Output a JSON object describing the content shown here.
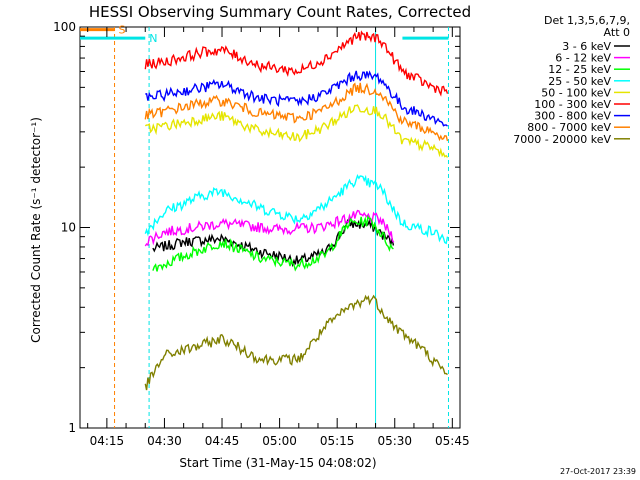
{
  "chart_data": {
    "type": "line",
    "title": "HESSI Observing Summary Count Rates, Corrected",
    "xlabel": "Start Time (31-May-15 04:08:02)",
    "ylabel": "Corrected Count Rate (s⁻¹ detector⁻¹)",
    "y_scale": "log",
    "ylim": [
      1,
      100
    ],
    "xlim_minutes": [
      "04:08",
      "05:47"
    ],
    "x_ticks": [
      "04:15",
      "04:30",
      "04:45",
      "05:00",
      "05:15",
      "05:30",
      "05:45"
    ],
    "y_ticks": [
      "1",
      "10",
      "100"
    ],
    "grid": false,
    "legend_placement": "right",
    "legend_header": [
      "Det 1,3,5,6,7,9,",
      "Att 0"
    ],
    "flags": [
      {
        "label": "S",
        "color": "#ff8000",
        "from": "04:08",
        "to": "04:17",
        "level": 97
      },
      {
        "label": "N",
        "color": "#00e5e5",
        "from": "04:08",
        "to": "04:25",
        "level": 88
      },
      {
        "label": "",
        "color": "#00e5e5",
        "from": "05:32",
        "to": "05:44",
        "level": 88
      }
    ],
    "markers": [
      {
        "time": "04:17",
        "color": "#ff8000",
        "style": "dashed"
      },
      {
        "time": "04:26",
        "color": "#00e5e5",
        "style": "dashed"
      },
      {
        "time": "05:25",
        "color": "#00e5e5",
        "style": "solid"
      },
      {
        "time": "05:44",
        "color": "#00e5e5",
        "style": "dashed"
      }
    ],
    "series": [
      {
        "name": "3 - 6 keV",
        "color": "#000000",
        "points": [
          [
            "04:27",
            7.8
          ],
          [
            "04:35",
            8.5
          ],
          [
            "04:45",
            8.8
          ],
          [
            "04:55",
            7.6
          ],
          [
            "05:05",
            6.8
          ],
          [
            "05:12",
            7.5
          ],
          [
            "05:18",
            10.5
          ],
          [
            "05:24",
            10.2
          ],
          [
            "05:30",
            8.2
          ]
        ]
      },
      {
        "name": "6 - 12 keV",
        "color": "#ff00ff",
        "points": [
          [
            "04:25",
            8.5
          ],
          [
            "04:30",
            9.5
          ],
          [
            "04:45",
            10.5
          ],
          [
            "05:00",
            9.8
          ],
          [
            "05:10",
            10
          ],
          [
            "05:20",
            11.5
          ],
          [
            "05:26",
            11
          ],
          [
            "05:30",
            8.8
          ]
        ]
      },
      {
        "name": "12 - 25 keV",
        "color": "#00ff00",
        "points": [
          [
            "04:27",
            6.2
          ],
          [
            "04:35",
            7.2
          ],
          [
            "04:45",
            8.5
          ],
          [
            "04:55",
            7
          ],
          [
            "05:05",
            6.5
          ],
          [
            "05:12",
            7.3
          ],
          [
            "05:18",
            10.5
          ],
          [
            "05:24",
            10.8
          ],
          [
            "05:30",
            7.5
          ]
        ]
      },
      {
        "name": "25 - 50 keV",
        "color": "#00ffff",
        "points": [
          [
            "04:25",
            9.5
          ],
          [
            "04:30",
            12
          ],
          [
            "04:40",
            14.5
          ],
          [
            "04:45",
            15.2
          ],
          [
            "04:55",
            12.5
          ],
          [
            "05:05",
            11
          ],
          [
            "05:12",
            13
          ],
          [
            "05:20",
            17.5
          ],
          [
            "05:26",
            16
          ],
          [
            "05:32",
            10.5
          ],
          [
            "05:40",
            9.5
          ],
          [
            "05:44",
            8.5
          ]
        ]
      },
      {
        "name": "50 - 100 keV",
        "color": "#e5e500",
        "points": [
          [
            "04:25",
            31
          ],
          [
            "04:30",
            32
          ],
          [
            "04:40",
            35
          ],
          [
            "04:45",
            36
          ],
          [
            "04:55",
            30
          ],
          [
            "05:05",
            28
          ],
          [
            "05:12",
            32
          ],
          [
            "05:20",
            40
          ],
          [
            "05:26",
            38
          ],
          [
            "05:32",
            27
          ],
          [
            "05:40",
            25
          ],
          [
            "05:44",
            22
          ]
        ]
      },
      {
        "name": "100 - 300 keV",
        "color": "#ff0000",
        "points": [
          [
            "04:25",
            65
          ],
          [
            "04:30",
            67
          ],
          [
            "04:40",
            75
          ],
          [
            "04:45",
            77
          ],
          [
            "04:55",
            64
          ],
          [
            "05:05",
            60
          ],
          [
            "05:12",
            70
          ],
          [
            "05:20",
            90
          ],
          [
            "05:26",
            88
          ],
          [
            "05:32",
            60
          ],
          [
            "05:40",
            50
          ],
          [
            "05:44",
            48
          ]
        ]
      },
      {
        "name": "300 - 800 keV",
        "color": "#0000ff",
        "points": [
          [
            "04:25",
            44
          ],
          [
            "04:30",
            46
          ],
          [
            "04:40",
            50
          ],
          [
            "04:45",
            52
          ],
          [
            "04:55",
            44
          ],
          [
            "05:05",
            42
          ],
          [
            "05:12",
            47
          ],
          [
            "05:20",
            58
          ],
          [
            "05:26",
            56
          ],
          [
            "05:32",
            40
          ],
          [
            "05:40",
            35
          ],
          [
            "05:44",
            32
          ]
        ]
      },
      {
        "name": "800 - 7000 keV",
        "color": "#ff8000",
        "points": [
          [
            "04:25",
            36
          ],
          [
            "04:30",
            38
          ],
          [
            "04:40",
            42
          ],
          [
            "04:45",
            43
          ],
          [
            "04:55",
            37
          ],
          [
            "05:05",
            35
          ],
          [
            "05:12",
            39
          ],
          [
            "05:20",
            50
          ],
          [
            "05:26",
            48
          ],
          [
            "05:32",
            34
          ],
          [
            "05:40",
            30
          ],
          [
            "05:44",
            27
          ]
        ]
      },
      {
        "name": "7000 - 20000 keV",
        "color": "#808000",
        "points": [
          [
            "04:25",
            1.6
          ],
          [
            "04:30",
            2.3
          ],
          [
            "04:40",
            2.6
          ],
          [
            "04:45",
            2.8
          ],
          [
            "04:55",
            2.2
          ],
          [
            "05:05",
            2.2
          ],
          [
            "05:12",
            3.2
          ],
          [
            "05:18",
            4
          ],
          [
            "05:24",
            4.5
          ],
          [
            "05:30",
            3.2
          ],
          [
            "05:38",
            2.4
          ],
          [
            "05:44",
            1.8
          ]
        ]
      }
    ]
  },
  "timestamp": "27-Oct-2017 23:39"
}
